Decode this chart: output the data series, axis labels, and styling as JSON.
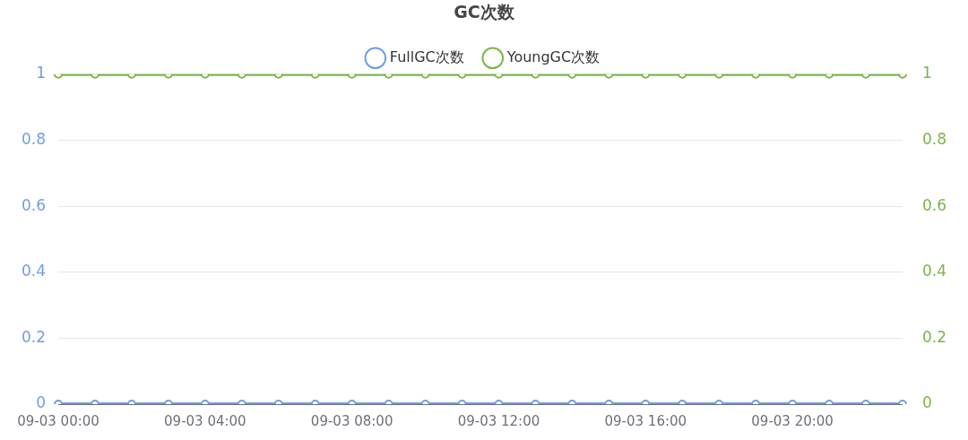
{
  "chart_data": {
    "type": "line",
    "title": "GC次数",
    "categories": [
      "09-03 00:00",
      null,
      null,
      null,
      "09-03 04:00",
      null,
      null,
      null,
      "09-03 08:00",
      null,
      null,
      null,
      "09-03 12:00",
      null,
      null,
      null,
      "09-03 16:00",
      null,
      null,
      null,
      "09-03 20:00",
      null,
      null,
      null
    ],
    "series": [
      {
        "name": "FullGC次数",
        "color": "#6e9ee6",
        "values": [
          0,
          0,
          0,
          0,
          0,
          0,
          0,
          0,
          0,
          0,
          0,
          0,
          0,
          0,
          0,
          0,
          0,
          0,
          0,
          0,
          0,
          0,
          0,
          0
        ]
      },
      {
        "name": "YoungGC次数",
        "color": "#7ab648",
        "axis": "y2",
        "values": [
          1,
          1,
          1,
          1,
          1,
          1,
          1,
          1,
          1,
          1,
          1,
          1,
          1,
          1,
          1,
          1,
          1,
          1,
          1,
          1,
          1,
          1,
          1,
          1
        ]
      }
    ],
    "ylim": [
      0,
      1
    ],
    "yticks": [
      0,
      0.2,
      0.4,
      0.6,
      0.8,
      1
    ],
    "y2lim": [
      0,
      1
    ],
    "y2ticks": [
      0,
      0.2,
      0.4,
      0.6,
      0.8,
      1
    ],
    "grid": "y",
    "legend": "top",
    "marker": "circle",
    "line_style": "solid"
  }
}
